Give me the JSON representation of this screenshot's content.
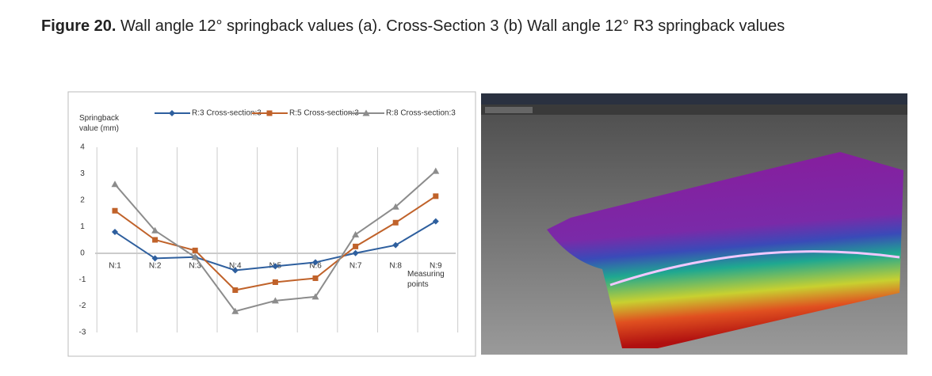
{
  "caption": {
    "label": "Figure 20.",
    "text": "Wall angle 12° springback values (a). Cross-Section 3 (b) Wall angle 12° R3 springback values"
  },
  "chart_data": {
    "type": "line",
    "y_label": "Springback value (mm)",
    "x_label": "Measuring points",
    "categories": [
      "N:1",
      "N:2",
      "N:3",
      "N:4",
      "N:5",
      "N:6",
      "N:7",
      "N:8",
      "N:9"
    ],
    "series": [
      {
        "name": "R:3 Cross-section:3",
        "color": "#2e5f9e",
        "marker": "diamond",
        "values": [
          0.8,
          -0.2,
          -0.15,
          -0.65,
          -0.5,
          -0.35,
          0,
          0.3,
          1.2
        ]
      },
      {
        "name": "R:5 Cross-section:3",
        "color": "#c0622a",
        "marker": "square",
        "values": [
          1.6,
          0.5,
          0.1,
          -1.4,
          -1.1,
          -0.95,
          0.25,
          1.15,
          2.15
        ]
      },
      {
        "name": "R:8 Cross-section:3",
        "color": "#8c8c8c",
        "marker": "triangle",
        "values": [
          2.6,
          0.85,
          -0.15,
          -2.2,
          -1.8,
          -1.65,
          0.7,
          1.75,
          3.1
        ]
      }
    ],
    "ylim": [
      -3,
      4
    ],
    "yticks": [
      -3,
      -2,
      -1,
      0,
      1,
      2,
      3,
      4
    ]
  }
}
